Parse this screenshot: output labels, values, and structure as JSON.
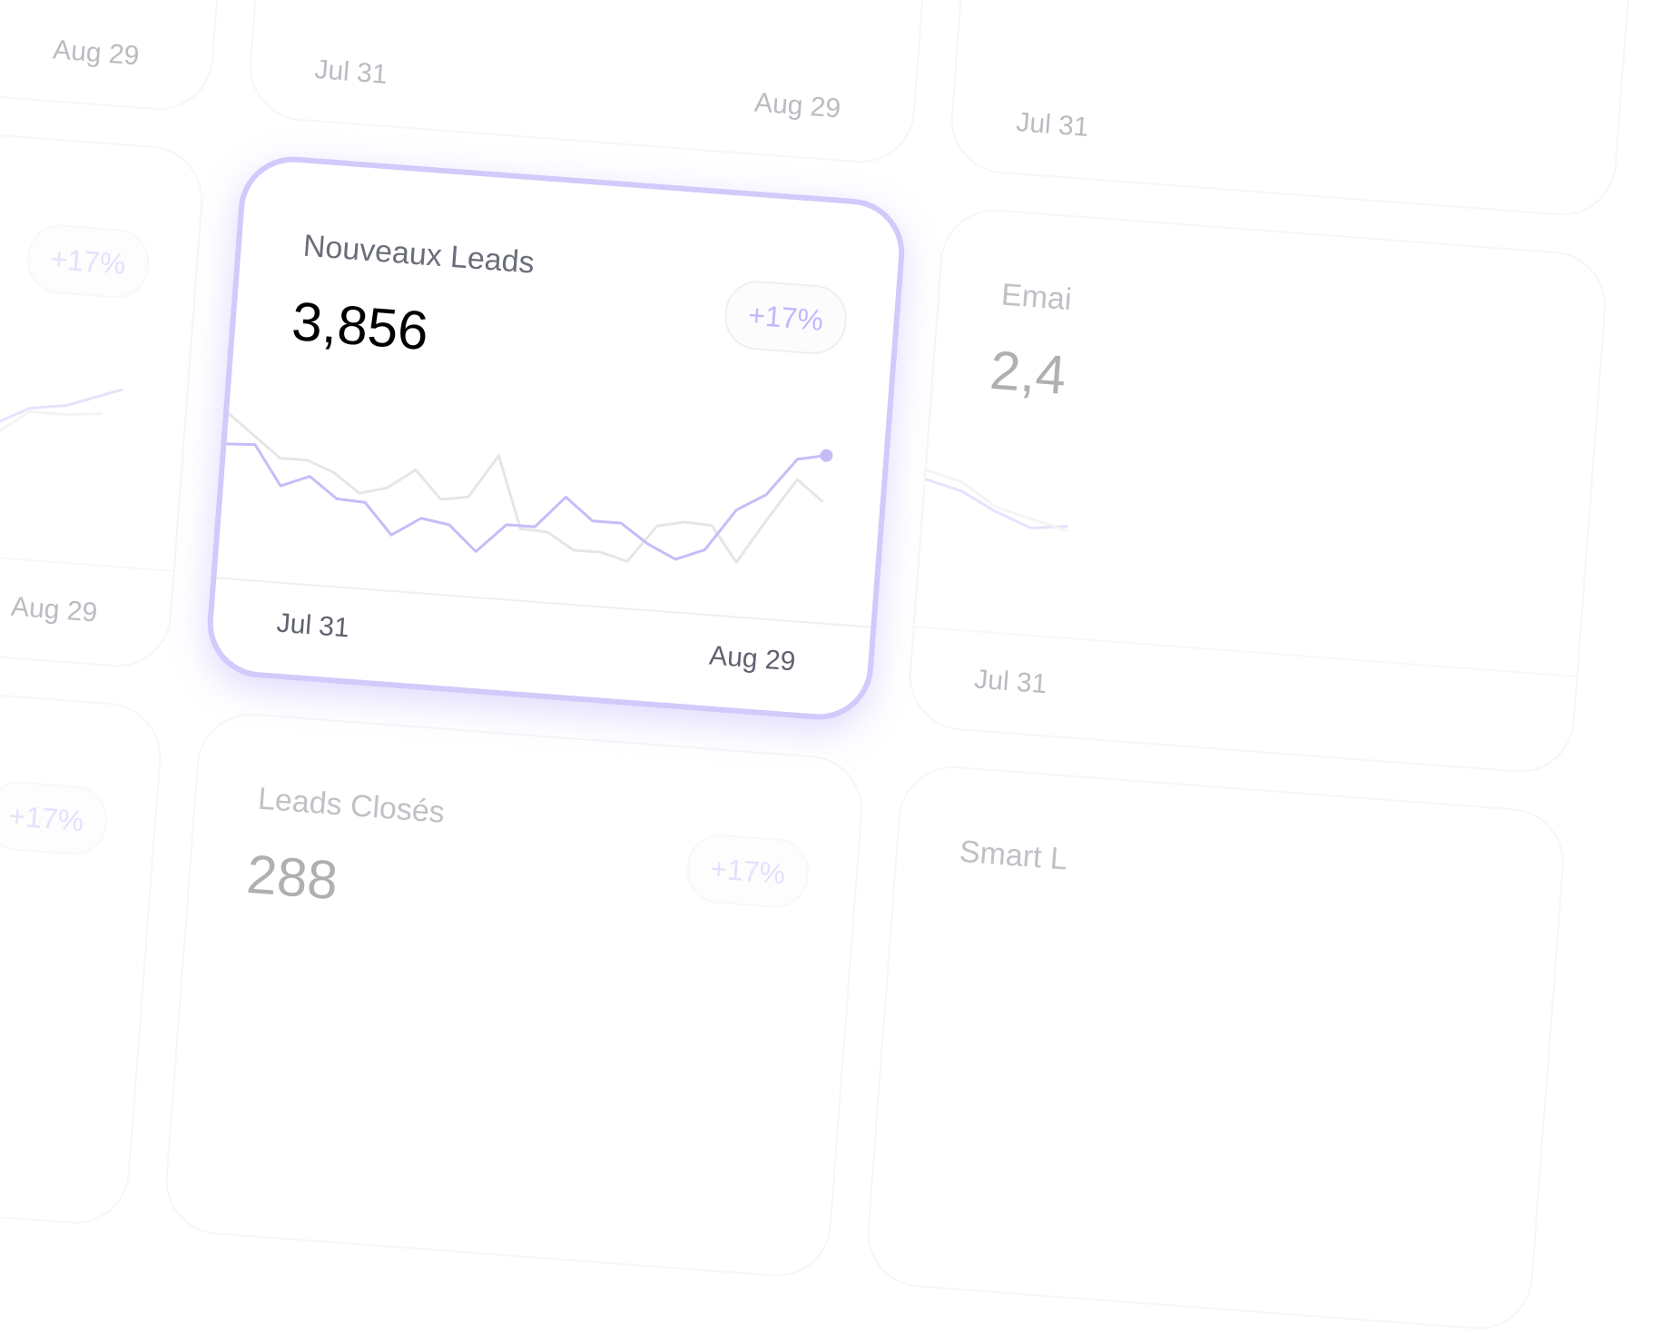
{
  "featured_card": {
    "title": "Nouveaux Leads",
    "value": "3,856",
    "change": "+17%",
    "chart": {
      "start_date": "Jul 31",
      "end_date": "Aug 29",
      "series": [
        {
          "color": "#c8bcf8",
          "values": [
            70,
            71,
            44,
            52,
            38,
            37,
            16,
            29,
            26,
            9,
            29,
            29,
            51,
            36,
            36,
            23,
            14,
            22,
            51,
            63,
            89,
            93
          ]
        },
        {
          "color": "#e6e6e6",
          "values": [
            91,
            77,
            63,
            63,
            56,
            43,
            48,
            62,
            43,
            46,
            76,
            27,
            26,
            15,
            15,
            10,
            36,
            40,
            39,
            15,
            46,
            75,
            61
          ]
        }
      ]
    }
  },
  "top_left_card": {
    "end_date": "Aug 29"
  },
  "top_card": {
    "start_date": "Jul 31",
    "end_date": "Aug 29"
  },
  "top_right_card": {
    "start_date": "Jul 31"
  },
  "left_card": {
    "change": "+17%",
    "end_date": "Aug 29"
  },
  "right_card": {
    "title": "Emai",
    "value": "2,4",
    "start_date": "Jul 31"
  },
  "bottom_left_card": {
    "change": "+17%"
  },
  "bottom_card": {
    "title": "Leads Closés",
    "value": "288",
    "change": "+17%"
  },
  "bottom_right_card": {
    "title": "Smart L"
  }
}
